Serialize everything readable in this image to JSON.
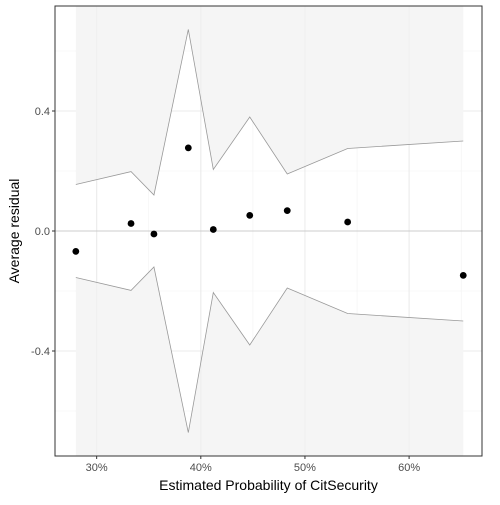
{
  "chart_data": {
    "type": "scatter",
    "title": "",
    "xlabel": "Estimated Probability of CitSecurity",
    "ylabel": "Average residual",
    "xlim": [
      0.26,
      0.67
    ],
    "ylim": [
      -0.75,
      0.75
    ],
    "x_ticks": [
      {
        "value": 0.3,
        "label": "30%"
      },
      {
        "value": 0.4,
        "label": "40%"
      },
      {
        "value": 0.5,
        "label": "50%"
      },
      {
        "value": 0.6,
        "label": "60%"
      }
    ],
    "y_ticks": [
      {
        "value": -0.4,
        "label": "-0.4"
      },
      {
        "value": 0.0,
        "label": "0.0"
      },
      {
        "value": 0.4,
        "label": "0.4"
      }
    ],
    "grid": true,
    "zero_line": true,
    "points": [
      {
        "x": 0.28,
        "y": -0.068
      },
      {
        "x": 0.333,
        "y": 0.025
      },
      {
        "x": 0.355,
        "y": -0.01
      },
      {
        "x": 0.388,
        "y": 0.277
      },
      {
        "x": 0.412,
        "y": 0.005
      },
      {
        "x": 0.447,
        "y": 0.052
      },
      {
        "x": 0.483,
        "y": 0.068
      },
      {
        "x": 0.541,
        "y": 0.03
      },
      {
        "x": 0.652,
        "y": -0.148
      }
    ],
    "band": {
      "x": [
        0.28,
        0.333,
        0.355,
        0.388,
        0.412,
        0.447,
        0.483,
        0.541,
        0.652
      ],
      "upper": [
        0.155,
        0.198,
        0.12,
        0.672,
        0.205,
        0.38,
        0.19,
        0.275,
        0.3
      ],
      "lower": [
        -0.155,
        -0.198,
        -0.12,
        -0.672,
        -0.205,
        -0.38,
        -0.19,
        -0.275,
        -0.3
      ]
    },
    "colors": {
      "band_fill": "#f5f5f5",
      "band_line": "#999999",
      "point": "#000000",
      "grid_major": "#ebebeb",
      "grid_minor": "#f2f2f2",
      "zero_line": "#cccccc",
      "panel_border": "#333333"
    }
  }
}
